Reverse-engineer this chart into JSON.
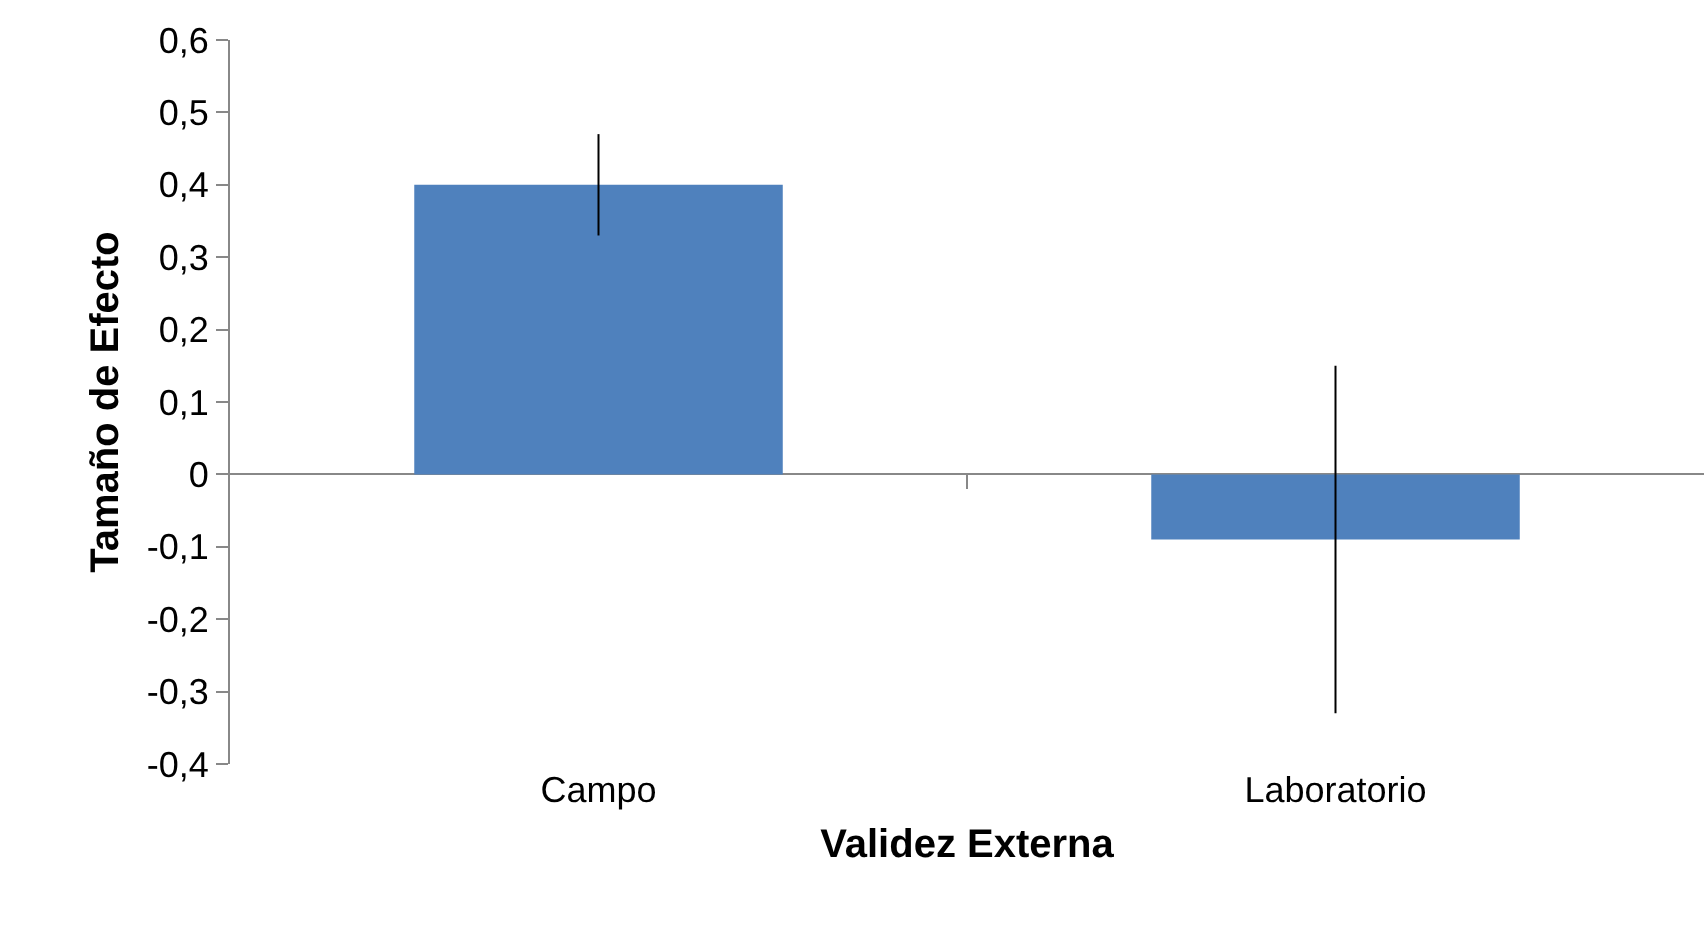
{
  "chart_data": {
    "type": "bar",
    "xlabel": "Validez Externa",
    "ylabel": "Tamaño de Efecto",
    "categories": [
      "Campo",
      "Laboratorio"
    ],
    "values": [
      0.4,
      -0.09
    ],
    "errors": [
      [
        0.33,
        0.47
      ],
      [
        -0.33,
        0.15
      ]
    ],
    "color": "#4f81bd",
    "ylim": [
      -0.4,
      0.6
    ],
    "yticks": [
      {
        "value": -0.4,
        "label": "-0,4"
      },
      {
        "value": -0.3,
        "label": "-0,3"
      },
      {
        "value": -0.2,
        "label": "-0,2"
      },
      {
        "value": -0.1,
        "label": "-0,1"
      },
      {
        "value": 0,
        "label": "0"
      },
      {
        "value": 0.1,
        "label": "0,1"
      },
      {
        "value": 0.2,
        "label": "0,2"
      },
      {
        "value": 0.3,
        "label": "0,3"
      },
      {
        "value": 0.4,
        "label": "0,4"
      },
      {
        "value": 0.5,
        "label": "0,5"
      },
      {
        "value": 0.6,
        "label": "0,6"
      }
    ],
    "legend": false
  }
}
